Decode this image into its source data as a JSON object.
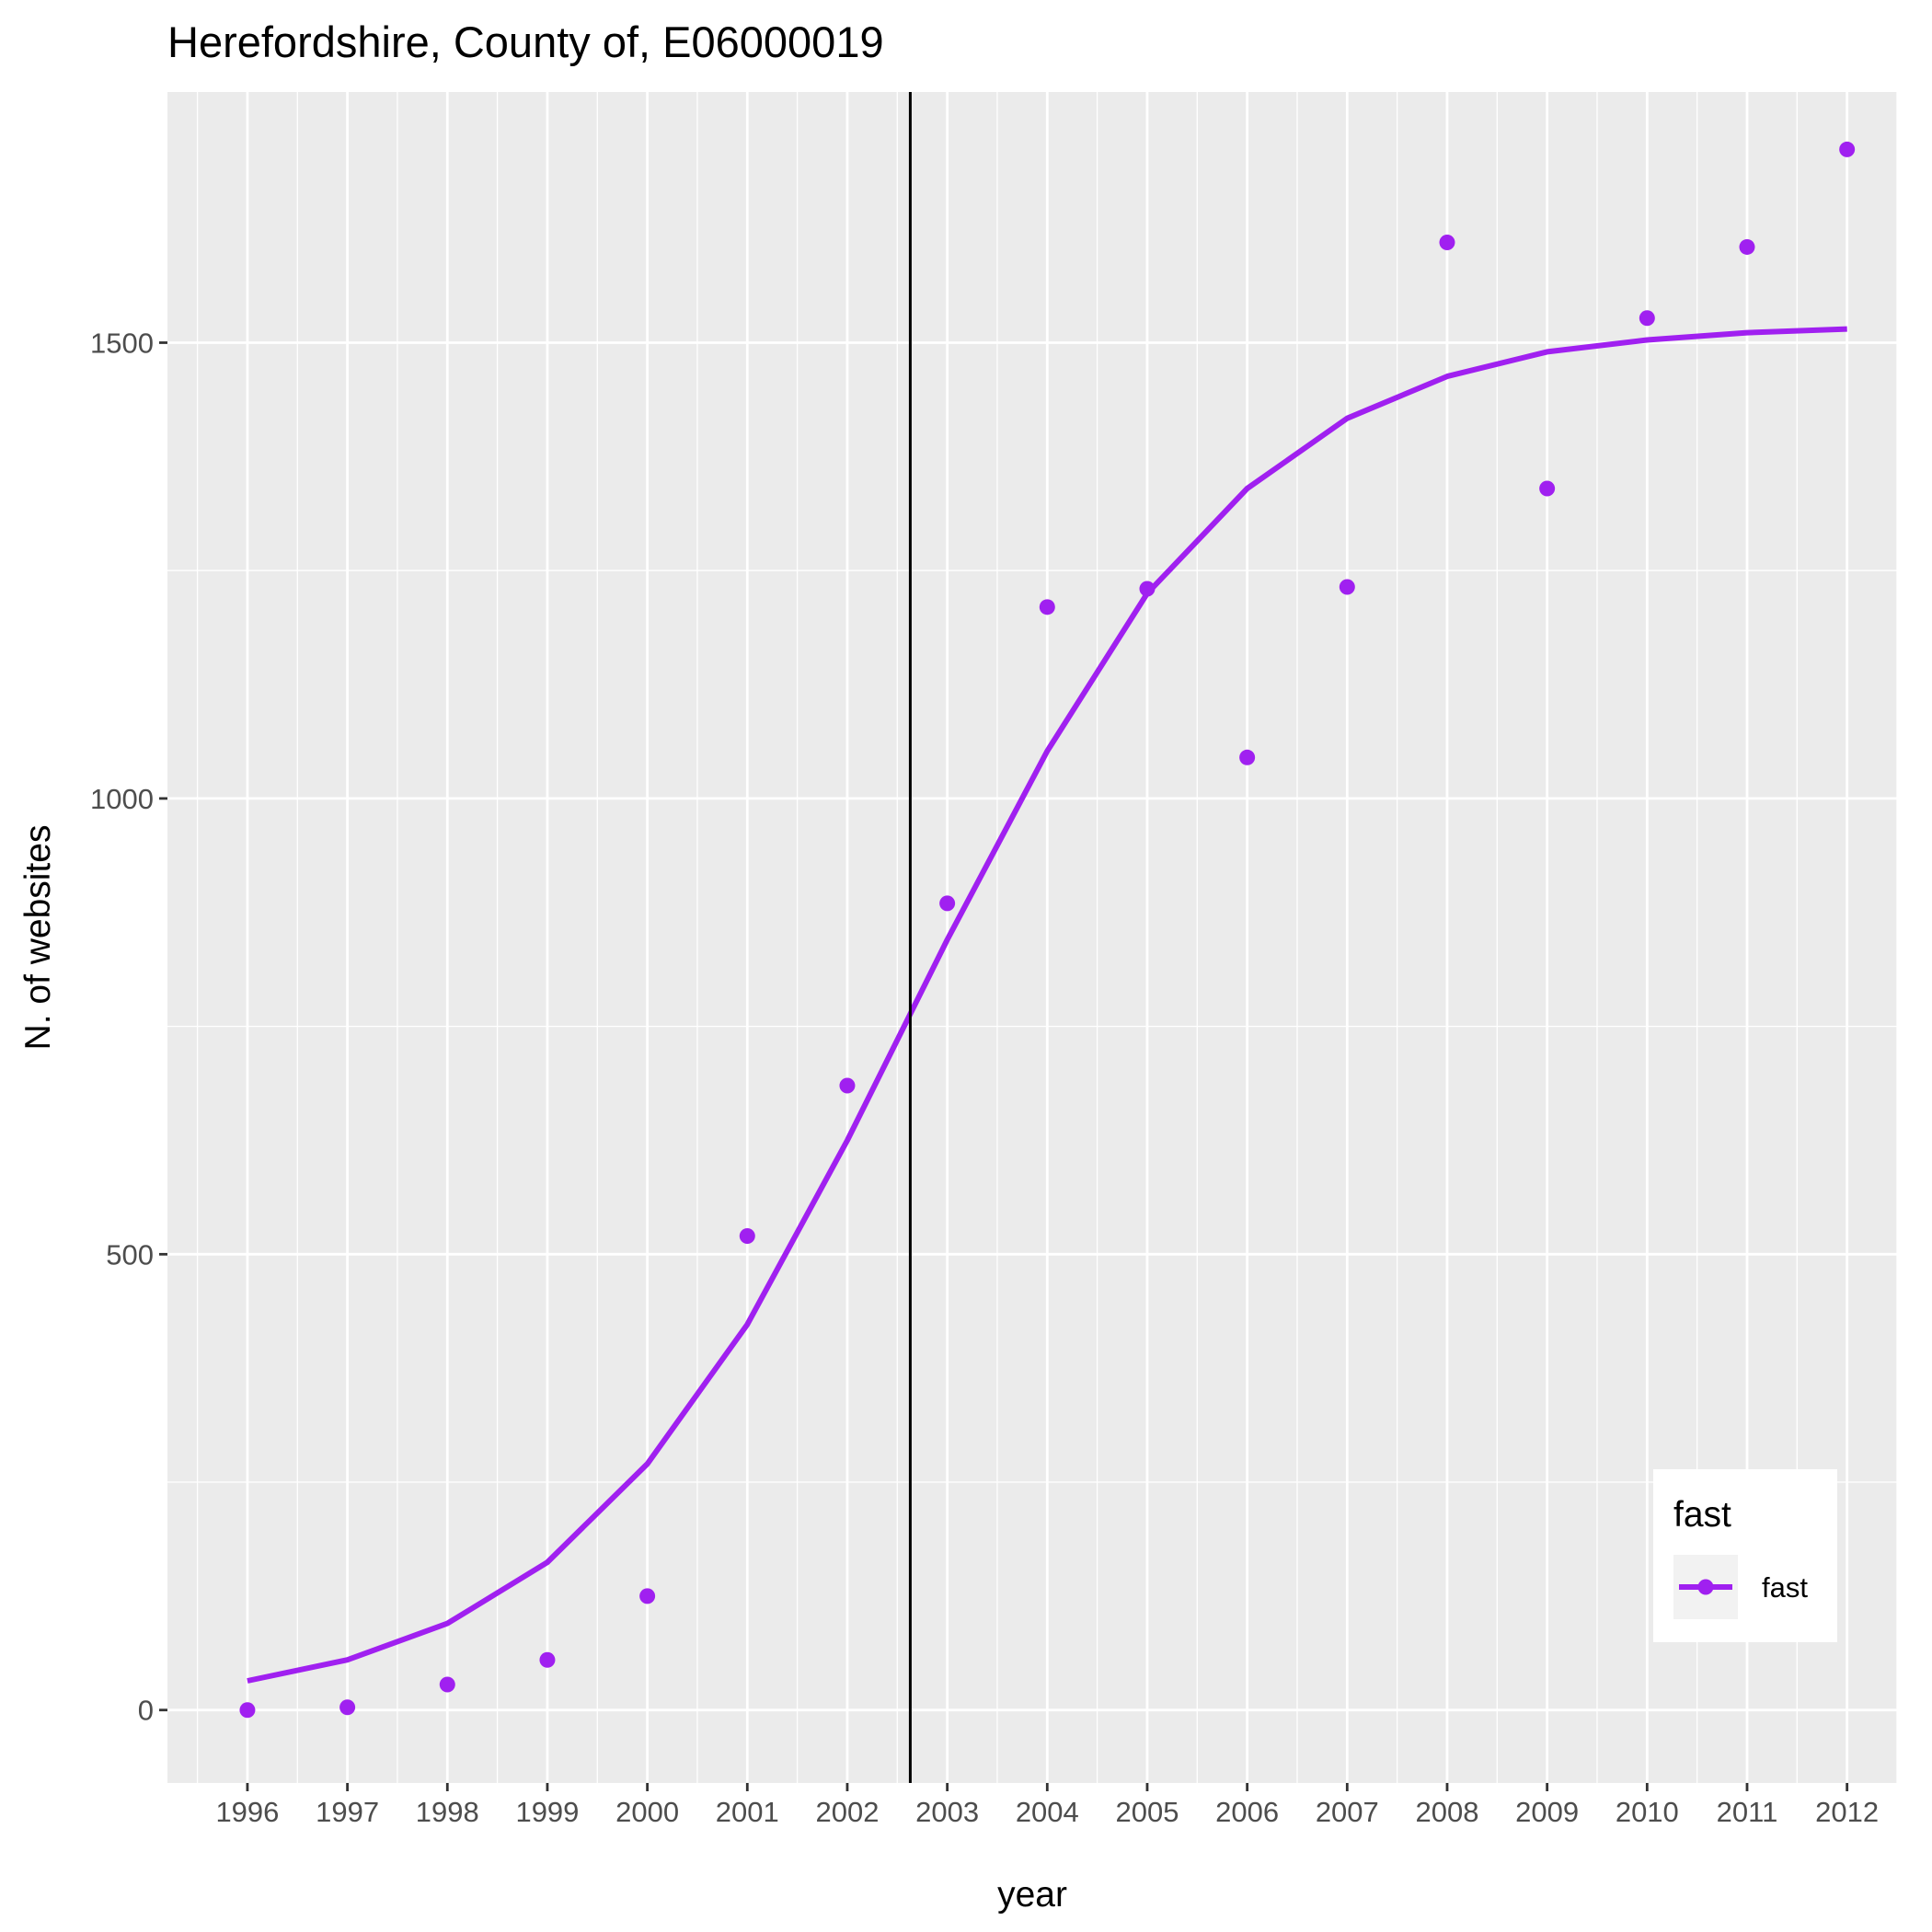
{
  "chart_data": {
    "type": "line",
    "title": "Herefordshire, County of, E06000019",
    "xlabel": "year",
    "ylabel": "N. of websites",
    "x": [
      1996,
      1997,
      1998,
      1999,
      2000,
      2001,
      2002,
      2003,
      2004,
      2005,
      2006,
      2007,
      2008,
      2009,
      2010,
      2011,
      2012
    ],
    "xlim": [
      1995.2,
      2012.5
    ],
    "ylim": [
      -80,
      1775
    ],
    "yticks": [
      0,
      500,
      1000,
      1500
    ],
    "yticks_minor": [
      250,
      750,
      1250
    ],
    "series": [
      {
        "name": "fast",
        "kind": "points",
        "color": "#A020F0",
        "values": [
          0,
          3,
          28,
          55,
          125,
          520,
          685,
          885,
          1210,
          1230,
          1045,
          1232,
          1610,
          1340,
          1527,
          1605,
          1712
        ]
      },
      {
        "name": "fast",
        "kind": "line",
        "color": "#A020F0",
        "values": [
          32,
          55,
          95,
          162,
          270,
          423,
          625,
          845,
          1052,
          1225,
          1340,
          1417,
          1463,
          1490,
          1503,
          1511,
          1515
        ]
      }
    ],
    "vline": {
      "x": 2002.63,
      "color": "#000000"
    },
    "grid": true,
    "panel_background": "#EBEBEB",
    "legend": {
      "title": "fast",
      "entries": [
        "fast"
      ],
      "placement": "bottom-right"
    }
  }
}
